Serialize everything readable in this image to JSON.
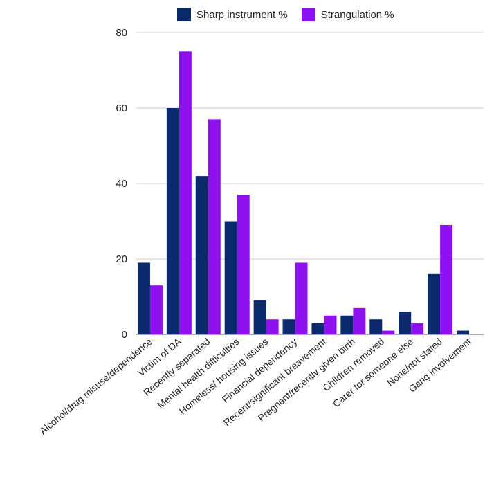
{
  "chart_data": {
    "type": "bar",
    "categories": [
      "Alcohol/drug misuse/dependence",
      "Victim of DA",
      "Recently separated",
      "Mental health difficulties",
      "Homeless/ housing issues",
      "Financial dependency",
      "Recent/significant breavement",
      "Pregnant/recently given birth",
      "Children removed",
      "Carer for someone else",
      "None/not stated",
      "Gang involvement"
    ],
    "series": [
      {
        "name": "Sharp instrument %",
        "color": "#0b2a6e",
        "values": [
          19,
          60,
          42,
          30,
          9,
          4,
          3,
          5,
          4,
          6,
          16,
          1
        ]
      },
      {
        "name": "Strangulation %",
        "color": "#8e12f0",
        "values": [
          13,
          75,
          57,
          37,
          4,
          19,
          5,
          7,
          1,
          3,
          29,
          0
        ]
      }
    ],
    "y_ticks": [
      "0",
      "20",
      "40",
      "60",
      "80"
    ],
    "ylim": [
      0,
      80
    ],
    "grid": true,
    "legend_position": "top"
  }
}
